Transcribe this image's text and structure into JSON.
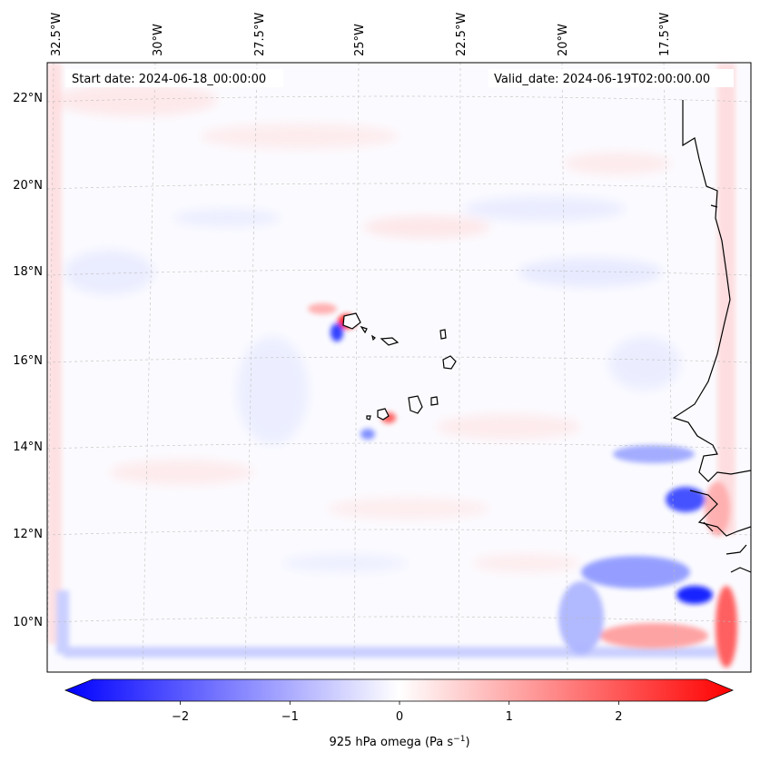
{
  "map": {
    "start_date": "Start date: 2024-06-18_00:00:00",
    "valid_date": "Valid_date: 2024-06-19T02:00:00.00",
    "lon_labels": [
      "32.5°W",
      "30°W",
      "27.5°W",
      "25°W",
      "22.5°W",
      "20°W",
      "17.5°W"
    ],
    "lat_labels": [
      "22°N",
      "20°N",
      "18°N",
      "16°N",
      "14°N",
      "12°N",
      "10°N"
    ],
    "extent": {
      "lon": [
        -32.6,
        -15.3
      ],
      "lat": [
        8.9,
        22.8
      ]
    },
    "field": "925 hPa omega"
  },
  "colorbar": {
    "label": "925 hPa omega (Pa s",
    "label_exp": "−1",
    "label_close": ")",
    "ticks": [
      "−2",
      "−1",
      "0",
      "1",
      "2"
    ],
    "range": [
      -2.8,
      2.8
    ],
    "cmap": [
      "#0000ff",
      "#ffffff",
      "#ff0000"
    ],
    "extend": "both"
  },
  "colors": {
    "negative": "#0000ff",
    "neutral": "#ffffff",
    "positive": "#ff0000",
    "coastline": "#000000",
    "gridline": "#bbbbbb"
  }
}
